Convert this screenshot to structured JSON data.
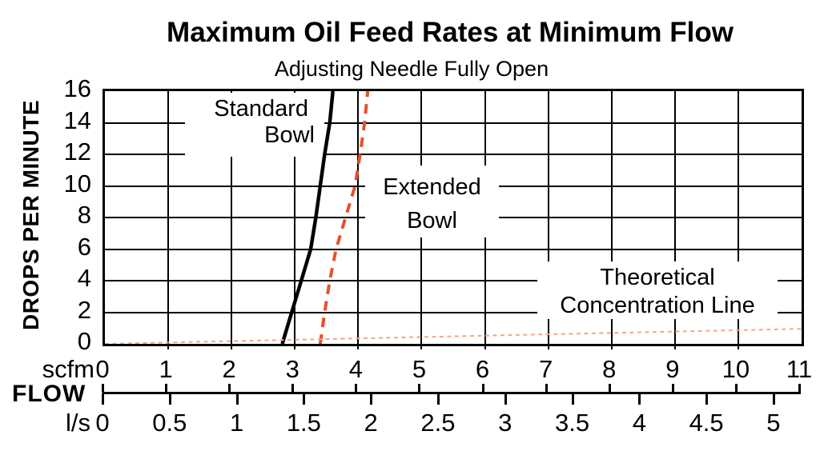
{
  "title": "Maximum Oil Feed Rates at Minimum Flow",
  "subtitle": "Adjusting Needle Fully Open",
  "y_axis": {
    "label": "DROPS PER MINUTE",
    "ticks": [
      16,
      14,
      12,
      10,
      8,
      6,
      4,
      2,
      0
    ]
  },
  "x_axis": {
    "flow_label": "FLOW",
    "scfm_unit": "scfm",
    "lps_unit": "l/s",
    "scfm_ticks": [
      0,
      1,
      2,
      3,
      4,
      5,
      6,
      7,
      8,
      9,
      10,
      11
    ],
    "lps_ticks": [
      "0",
      "0.5",
      "1",
      "1.5",
      "2",
      "2.5",
      "3",
      "3.5",
      "4",
      "4.5",
      "5"
    ]
  },
  "annotations": {
    "standard_bowl": {
      "line1": "Standard",
      "line2": "Bowl"
    },
    "extended_bowl": {
      "line1": "Extended",
      "line2": "Bowl"
    },
    "theoretical": {
      "line1": "Theoretical",
      "line2": "Concentration Line"
    }
  },
  "colors": {
    "grid": "#000000",
    "standard_bowl_curve": "#000000",
    "extended_bowl_curve": "#E8502B",
    "theoretical_line": "#F6A489"
  },
  "chart_data": {
    "type": "line",
    "title": "Maximum Oil Feed Rates at Minimum Flow",
    "subtitle": "Adjusting Needle Fully Open",
    "ylabel": "DROPS PER MINUTE",
    "xlabel": "FLOW",
    "x_units": [
      "scfm",
      "l/s"
    ],
    "xlim_scfm": [
      0,
      11
    ],
    "xlim_lps": [
      0,
      5.19
    ],
    "ylim": [
      0,
      16
    ],
    "grid": true,
    "x_gridline_step_scfm": 1,
    "y_gridline_step": 2,
    "scfm_tick_values": [
      0,
      1,
      2,
      3,
      4,
      5,
      6,
      7,
      8,
      9,
      10,
      11
    ],
    "lps_tick_values": [
      0,
      0.5,
      1,
      1.5,
      2,
      2.5,
      3,
      3.5,
      4,
      4.5,
      5
    ],
    "lps_to_scfm_factor": 2.11888,
    "series": [
      {
        "name": "Standard Bowl",
        "style": "solid",
        "color": "#000000",
        "points_scfm_drops": [
          [
            2.8,
            0
          ],
          [
            2.95,
            2
          ],
          [
            3.1,
            4
          ],
          [
            3.25,
            6
          ],
          [
            3.33,
            8
          ],
          [
            3.4,
            10
          ],
          [
            3.47,
            12
          ],
          [
            3.55,
            14
          ],
          [
            3.6,
            16
          ]
        ]
      },
      {
        "name": "Extended Bowl",
        "style": "dashed",
        "color": "#E8502B",
        "points_scfm_drops": [
          [
            3.4,
            0
          ],
          [
            3.47,
            2
          ],
          [
            3.55,
            4
          ],
          [
            3.65,
            6
          ],
          [
            3.8,
            8
          ],
          [
            3.95,
            10
          ],
          [
            4.03,
            12
          ],
          [
            4.1,
            14
          ],
          [
            4.15,
            16
          ]
        ]
      },
      {
        "name": "Theoretical Concentration Line",
        "style": "dotted",
        "color": "#F6A489",
        "points_scfm_drops": [
          [
            0,
            0
          ],
          [
            11,
            0.95
          ]
        ]
      }
    ]
  }
}
